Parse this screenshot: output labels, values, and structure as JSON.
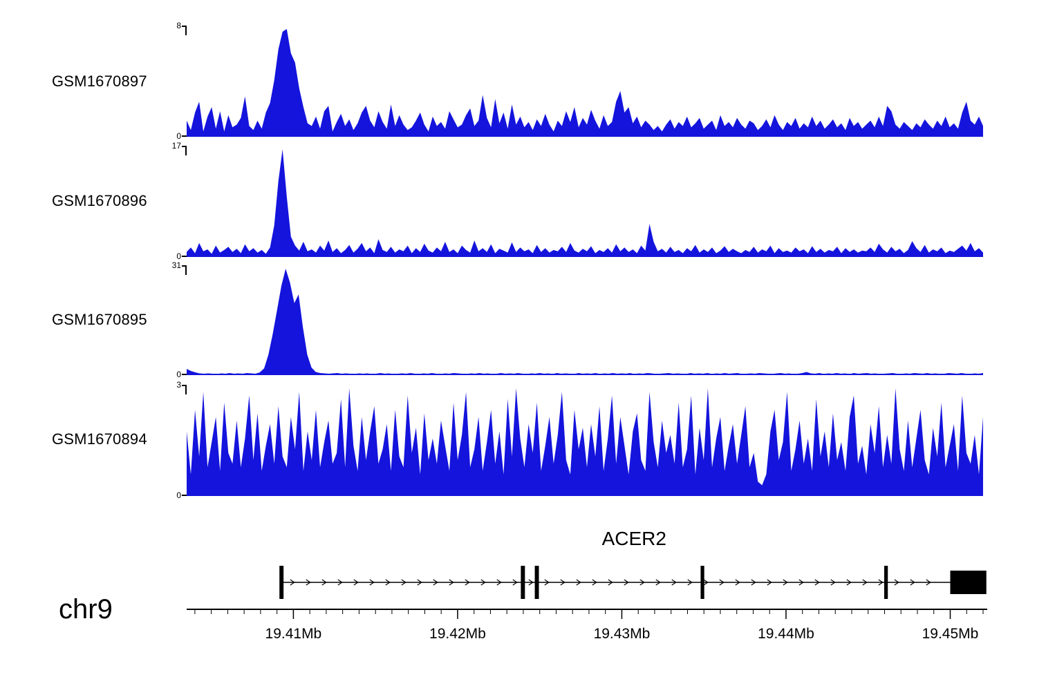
{
  "colors": {
    "signal": "#1414dd",
    "ink": "#000000",
    "background": "#ffffff"
  },
  "chart_data": {
    "type": "area",
    "description": "Genome browser coverage tracks over chr9 near gene ACER2",
    "chromosome": "chr9",
    "axis": {
      "xmin_mb": 19.4035,
      "xmax_mb": 19.452,
      "unit": "Mb",
      "major_ticks": [
        {
          "mb": 19.41,
          "label": "19.41Mb"
        },
        {
          "mb": 19.42,
          "label": "19.42Mb"
        },
        {
          "mb": 19.43,
          "label": "19.43Mb"
        },
        {
          "mb": 19.44,
          "label": "19.44Mb"
        },
        {
          "mb": 19.45,
          "label": "19.45Mb"
        }
      ],
      "minor_tick_start_mb": 19.404,
      "minor_tick_end_mb": 19.452,
      "minor_tick_step_mb": 0.001
    },
    "gene": {
      "name": "ACER2",
      "strand_direction": "right",
      "body_start_mb": 19.4093,
      "body_end_mb": 19.45,
      "exons_mb": [
        [
          19.40915,
          19.4094
        ],
        [
          19.42385,
          19.4241
        ],
        [
          19.4247,
          19.42495
        ],
        [
          19.4348,
          19.43502
        ],
        [
          19.44598,
          19.4462
        ]
      ],
      "thick_exon_mb": [
        19.45,
        19.4522
      ]
    },
    "tracks": [
      {
        "name": "GSM1670897",
        "ymin": 0,
        "ymax": 8,
        "values": [
          1.2,
          0.5,
          1.8,
          2.6,
          0.4,
          1.5,
          2.2,
          0.6,
          1.9,
          0.4,
          1.6,
          0.7,
          0.9,
          1.4,
          3.0,
          0.8,
          0.5,
          1.2,
          0.6,
          1.8,
          2.5,
          4.2,
          6.5,
          7.8,
          8.0,
          6.2,
          5.5,
          3.6,
          2.2,
          1.0,
          0.8,
          1.5,
          0.6,
          1.9,
          2.3,
          0.4,
          1.1,
          1.7,
          0.8,
          1.3,
          0.5,
          1.0,
          1.8,
          2.3,
          1.2,
          0.7,
          1.9,
          1.1,
          0.6,
          2.4,
          0.8,
          1.6,
          0.9,
          0.5,
          0.7,
          1.2,
          1.8,
          0.9,
          0.4,
          1.5,
          0.8,
          1.1,
          0.6,
          1.9,
          1.3,
          0.7,
          0.9,
          1.6,
          2.1,
          0.8,
          1.2,
          3.1,
          1.4,
          0.7,
          2.8,
          1.0,
          1.8,
          0.6,
          2.4,
          0.9,
          1.5,
          0.7,
          1.1,
          0.5,
          1.3,
          0.8,
          1.7,
          0.9,
          0.4,
          1.2,
          0.8,
          1.9,
          1.1,
          2.2,
          0.7,
          1.4,
          0.9,
          2.0,
          1.2,
          0.6,
          1.6,
          0.8,
          1.1,
          2.6,
          3.4,
          1.8,
          2.2,
          1.0,
          1.5,
          0.7,
          1.2,
          0.9,
          0.5,
          0.8,
          0.4,
          0.9,
          1.3,
          0.6,
          1.1,
          0.8,
          1.5,
          0.7,
          1.0,
          1.4,
          0.6,
          0.9,
          1.2,
          0.5,
          1.6,
          0.8,
          1.1,
          0.7,
          1.4,
          0.9,
          0.6,
          1.2,
          1.0,
          0.5,
          0.8,
          1.3,
          0.7,
          1.6,
          0.9,
          0.5,
          1.1,
          0.8,
          1.4,
          0.6,
          1.0,
          0.7,
          1.5,
          0.8,
          1.2,
          0.6,
          0.9,
          1.3,
          0.7,
          1.0,
          0.5,
          1.4,
          0.8,
          1.1,
          0.6,
          0.9,
          1.2,
          0.7,
          1.5,
          0.8,
          2.3,
          1.9,
          0.9,
          0.6,
          1.1,
          0.8,
          0.5,
          1.0,
          0.7,
          1.3,
          0.9,
          0.6,
          1.2,
          0.8,
          1.5,
          0.7,
          1.0,
          0.6,
          1.8,
          2.6,
          1.2,
          0.9,
          1.5,
          0.8
        ]
      },
      {
        "name": "GSM1670896",
        "ymin": 0,
        "ymax": 17,
        "values": [
          0.8,
          1.5,
          0.6,
          2.2,
          0.9,
          1.2,
          0.5,
          1.8,
          0.7,
          1.1,
          1.6,
          0.8,
          1.3,
          0.6,
          2.0,
          0.9,
          1.4,
          0.7,
          1.1,
          0.5,
          1.5,
          5.0,
          12.0,
          17.0,
          9.5,
          3.2,
          1.8,
          1.0,
          2.4,
          0.9,
          1.2,
          0.7,
          1.8,
          1.0,
          2.6,
          0.8,
          1.4,
          0.6,
          1.1,
          1.9,
          0.7,
          1.3,
          2.2,
          0.9,
          1.5,
          0.6,
          2.8,
          1.1,
          0.8,
          1.6,
          0.7,
          1.2,
          0.9,
          1.8,
          0.6,
          1.4,
          0.8,
          2.1,
          1.0,
          0.7,
          1.5,
          0.9,
          2.4,
          0.8,
          1.2,
          0.6,
          1.8,
          1.1,
          0.7,
          2.6,
          0.9,
          1.4,
          0.8,
          2.0,
          0.6,
          1.3,
          1.0,
          0.7,
          2.3,
          0.8,
          1.5,
          0.9,
          1.2,
          0.6,
          1.9,
          0.8,
          1.4,
          0.7,
          1.1,
          0.9,
          1.6,
          0.8,
          2.2,
          1.0,
          0.7,
          1.3,
          0.9,
          1.7,
          0.6,
          1.1,
          0.8,
          1.4,
          0.7,
          2.0,
          0.9,
          1.5,
          0.8,
          1.2,
          0.6,
          1.8,
          1.0,
          5.2,
          2.4,
          0.9,
          1.3,
          0.7,
          1.6,
          0.8,
          1.1,
          0.6,
          1.4,
          0.9,
          1.9,
          0.7,
          1.2,
          0.8,
          1.5,
          0.6,
          1.0,
          1.7,
          0.8,
          1.3,
          0.9,
          0.6,
          1.1,
          0.8,
          1.6,
          0.7,
          1.2,
          0.9,
          1.8,
          0.6,
          1.4,
          0.8,
          1.0,
          0.7,
          1.5,
          0.9,
          1.2,
          0.6,
          1.7,
          0.8,
          1.3,
          0.7,
          1.1,
          0.9,
          1.6,
          0.6,
          1.4,
          0.8,
          1.2,
          0.7,
          1.0,
          0.9,
          1.5,
          0.8,
          2.1,
          1.2,
          0.7,
          1.6,
          0.9,
          1.3,
          0.6,
          1.1,
          2.5,
          1.4,
          0.8,
          1.9,
          0.7,
          1.2,
          0.9,
          1.5,
          0.6,
          1.0,
          0.8,
          1.3,
          1.8,
          1.0,
          2.2,
          0.9,
          1.4,
          0.7
        ]
      },
      {
        "name": "GSM1670895",
        "ymin": 0,
        "ymax": 31,
        "values": [
          1.8,
          1.2,
          0.8,
          0.5,
          0.4,
          0.5,
          0.4,
          0.3,
          0.5,
          0.4,
          0.6,
          0.4,
          0.5,
          0.4,
          0.6,
          0.5,
          0.4,
          0.8,
          2.0,
          6.0,
          12.0,
          19.0,
          26.0,
          31.0,
          27.0,
          21.0,
          23.5,
          14.0,
          6.0,
          2.2,
          0.9,
          0.6,
          0.5,
          0.4,
          0.5,
          0.6,
          0.4,
          0.5,
          0.4,
          0.3,
          0.5,
          0.4,
          0.5,
          0.3,
          0.4,
          0.6,
          0.4,
          0.5,
          0.3,
          0.4,
          0.5,
          0.4,
          0.6,
          0.4,
          0.3,
          0.5,
          0.4,
          0.6,
          0.4,
          0.3,
          0.5,
          0.4,
          0.6,
          0.5,
          0.4,
          0.3,
          0.5,
          0.4,
          0.6,
          0.4,
          0.5,
          0.3,
          0.4,
          0.6,
          0.4,
          0.5,
          0.4,
          0.6,
          0.4,
          0.3,
          0.5,
          0.4,
          0.6,
          0.4,
          0.5,
          0.3,
          0.6,
          0.4,
          0.5,
          0.4,
          0.3,
          0.6,
          0.4,
          0.5,
          0.4,
          0.6,
          0.3,
          0.5,
          0.4,
          0.6,
          0.4,
          0.5,
          0.4,
          0.6,
          0.3,
          0.5,
          0.4,
          0.6,
          0.5,
          0.3,
          0.4,
          0.5,
          0.6,
          0.4,
          0.5,
          0.4,
          0.3,
          0.6,
          0.4,
          0.5,
          0.4,
          0.6,
          0.3,
          0.5,
          0.4,
          0.6,
          0.4,
          0.5,
          0.6,
          0.3,
          0.4,
          0.5,
          0.4,
          0.6,
          0.5,
          0.4,
          0.3,
          0.5,
          0.6,
          0.4,
          0.5,
          0.3,
          0.4,
          0.6,
          0.9,
          0.5,
          0.4,
          0.6,
          0.3,
          0.5,
          0.4,
          0.6,
          0.4,
          0.5,
          0.3,
          0.6,
          0.4,
          0.5,
          0.6,
          0.4,
          0.5,
          0.3,
          0.4,
          0.5,
          0.6,
          0.4,
          0.3,
          0.5,
          0.4,
          0.6,
          0.5,
          0.4,
          0.6,
          0.4,
          0.5,
          0.3,
          0.4,
          0.6,
          0.5,
          0.4,
          0.6,
          0.4,
          0.3,
          0.5,
          0.4,
          0.6
        ]
      },
      {
        "name": "GSM1670894",
        "ymin": 0,
        "ymax": 3,
        "values": [
          1.8,
          0.6,
          2.4,
          1.1,
          2.9,
          0.8,
          1.5,
          2.2,
          0.7,
          2.6,
          1.2,
          0.9,
          2.1,
          0.8,
          1.6,
          2.8,
          1.0,
          2.3,
          0.7,
          1.4,
          2.0,
          0.9,
          2.5,
          1.1,
          0.8,
          2.2,
          1.3,
          2.9,
          0.7,
          1.8,
          1.0,
          2.4,
          0.8,
          1.5,
          2.1,
          0.9,
          1.2,
          2.7,
          0.8,
          3.0,
          1.4,
          0.7,
          2.2,
          1.0,
          1.8,
          2.5,
          0.9,
          1.3,
          2.0,
          0.7,
          2.4,
          1.1,
          0.8,
          2.8,
          1.2,
          1.9,
          0.6,
          2.3,
          1.0,
          1.6,
          0.9,
          2.1,
          1.4,
          0.7,
          2.6,
          1.0,
          1.7,
          2.9,
          0.8,
          1.3,
          2.2,
          0.7,
          1.5,
          2.4,
          0.9,
          1.8,
          0.6,
          2.7,
          1.1,
          3.0,
          1.6,
          0.8,
          2.0,
          1.2,
          2.6,
          0.7,
          1.4,
          2.2,
          0.9,
          1.7,
          2.9,
          1.0,
          0.6,
          2.4,
          1.3,
          1.9,
          0.8,
          2.0,
          1.1,
          2.5,
          0.7,
          1.6,
          2.8,
          0.9,
          2.2,
          1.4,
          0.6,
          1.8,
          2.3,
          1.0,
          0.7,
          2.9,
          1.5,
          0.8,
          2.1,
          1.2,
          1.7,
          0.9,
          2.6,
          0.8,
          1.3,
          2.8,
          0.6,
          1.9,
          1.0,
          3.0,
          0.8,
          1.6,
          2.2,
          0.7,
          1.4,
          2.0,
          0.9,
          1.7,
          2.5,
          0.8,
          1.2,
          0.4,
          0.3,
          0.6,
          1.8,
          2.4,
          1.0,
          1.5,
          2.9,
          0.7,
          1.3,
          2.1,
          0.9,
          1.6,
          0.7,
          2.7,
          1.1,
          1.8,
          0.8,
          2.3,
          1.0,
          1.5,
          0.7,
          2.2,
          2.8,
          0.9,
          1.4,
          0.6,
          2.0,
          1.2,
          2.5,
          0.8,
          1.7,
          0.9,
          3.0,
          1.3,
          0.7,
          2.1,
          0.8,
          1.6,
          2.4,
          1.0,
          0.6,
          1.9,
          1.1,
          2.6,
          0.8,
          1.4,
          2.0,
          0.7,
          2.8,
          1.2,
          0.9,
          1.7,
          0.6,
          2.2
        ]
      }
    ]
  }
}
